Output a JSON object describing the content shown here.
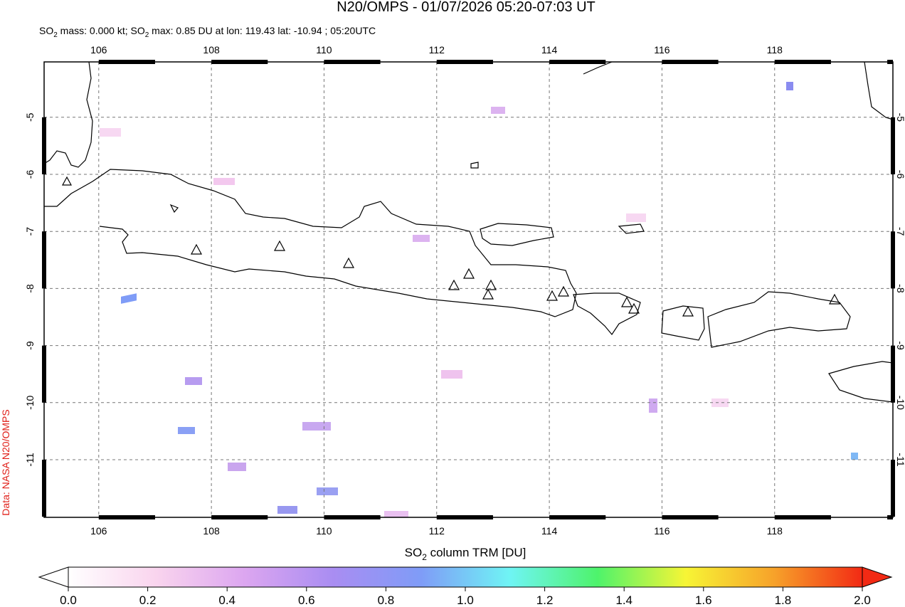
{
  "title": "N20/OMPS - 01/07/2026 05:20-07:03 UT",
  "subtitle": [
    "SO",
    "2",
    " mass: 0.000 kt; SO",
    "2",
    " max: 0.85 DU at lon: 119.43 lat: -10.94 ; 05:20UTC"
  ],
  "credit": "Data: NASA N20/OMPS",
  "map": {
    "xlim": [
      105.03,
      120.1
    ],
    "ylim": [
      -4.03,
      -12.01
    ],
    "xticks": [
      106,
      108,
      110,
      112,
      114,
      116,
      118
    ],
    "yticks": [
      -5,
      -6,
      -7,
      -8,
      -9,
      -10,
      -11
    ],
    "grid": true
  },
  "colorbar": {
    "label": [
      "SO",
      "2",
      " column TRM [DU]"
    ],
    "lim": [
      0,
      2
    ],
    "colors": [
      "#ffffff",
      "#f9d4ee",
      "#dca6f0",
      "#a98df2",
      "#7f9cf7",
      "#6ff4f5",
      "#4ef36b",
      "#f7f535",
      "#f7a22a",
      "#f22a14"
    ],
    "ticks": [
      {
        "value": 0,
        "label": "0.0"
      },
      {
        "value": 0.2,
        "label": "0.2"
      },
      {
        "value": 0.4,
        "label": "0.4"
      },
      {
        "value": 0.6,
        "label": "0.6"
      },
      {
        "value": 0.8,
        "label": "0.8"
      },
      {
        "value": 1,
        "label": "1.0"
      },
      {
        "value": 1.2,
        "label": "1.2"
      },
      {
        "value": 1.4,
        "label": "1.4"
      },
      {
        "value": 1.6,
        "label": "1.6"
      },
      {
        "value": 1.8,
        "label": "1.8"
      },
      {
        "value": 2,
        "label": "2.0"
      }
    ]
  }
}
